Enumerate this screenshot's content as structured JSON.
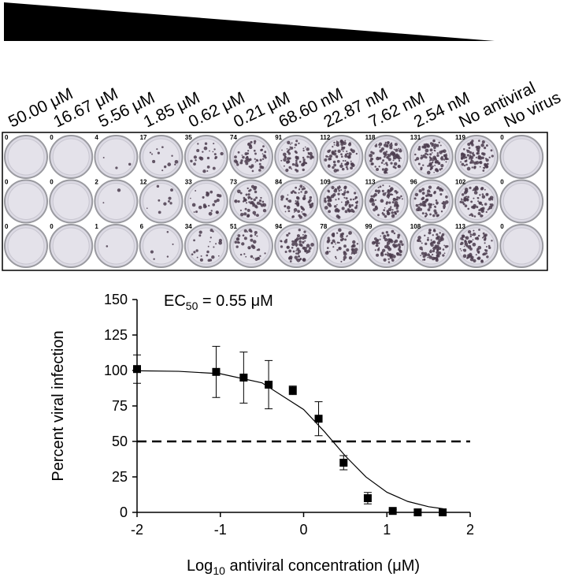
{
  "plate": {
    "concentrations": [
      "50.00 μM",
      "16.67 μM",
      "5.56 μM",
      "1.85 μM",
      "0.62 μM",
      "0.21 μM",
      "68.60 nM",
      "22.87 nM",
      "7.62 nM",
      "2.54 nM",
      "No antiviral",
      "No virus"
    ],
    "counts": [
      [
        0,
        0,
        4,
        17,
        35,
        74,
        91,
        112,
        118,
        131,
        119,
        0
      ],
      [
        0,
        0,
        2,
        12,
        33,
        73,
        84,
        109,
        113,
        96,
        102,
        0
      ],
      [
        0,
        0,
        1,
        6,
        34,
        51,
        94,
        78,
        99,
        108,
        113,
        0
      ]
    ]
  },
  "chart_data": {
    "type": "scatter",
    "ec50": {
      "prefix": "EC",
      "sub": "50",
      "text": " = 0.55  μM"
    },
    "x_label": {
      "prefix": "Log",
      "sub": "10",
      "text": " antiviral concentration (μM)"
    },
    "y_label": "Percent viral infection",
    "xlim": [
      -2,
      2
    ],
    "xticks": [
      -2,
      -1,
      0,
      1,
      2
    ],
    "ylim": [
      0,
      150
    ],
    "yticks": [
      0,
      25,
      50,
      75,
      100,
      125,
      150
    ],
    "series": [
      {
        "color": "#000000",
        "x": [
          -2,
          -1.05,
          -0.72,
          -0.42,
          -0.13,
          0.18,
          0.48,
          0.77,
          1.07,
          1.37,
          1.67
        ],
        "values": [
          101,
          99,
          95,
          90,
          86,
          66,
          35,
          10,
          1,
          0,
          0
        ],
        "errors": [
          10,
          18,
          18,
          17,
          3,
          12,
          5,
          4,
          1,
          0,
          0
        ]
      }
    ],
    "fit": {
      "color": "#000000",
      "x": [
        -2,
        -1.5,
        -1,
        -0.5,
        0,
        0.25,
        0.5,
        0.75,
        1,
        1.25,
        1.5,
        1.68
      ],
      "values": [
        99.8,
        99.4,
        97.7,
        91.3,
        72.5,
        56.9,
        39.8,
        24.9,
        14.2,
        7.7,
        4.0,
        2.5
      ]
    },
    "reference_line": 50
  }
}
